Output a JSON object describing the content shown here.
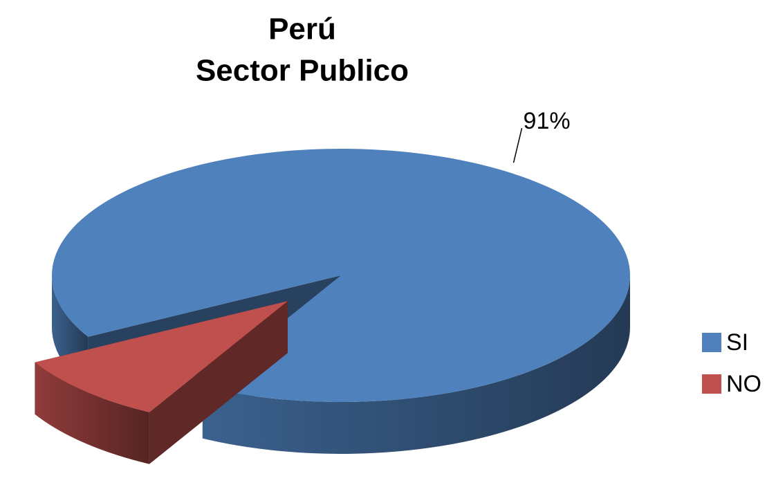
{
  "chart_data": {
    "type": "pie",
    "title": "Perú",
    "subtitle": "Sector Publico",
    "categories": [
      "SI",
      "NO"
    ],
    "values": [
      91,
      9
    ],
    "value_labels": [
      "91%",
      null
    ],
    "colors": [
      "#4f81bd",
      "#c0504d"
    ],
    "legend": "right"
  }
}
